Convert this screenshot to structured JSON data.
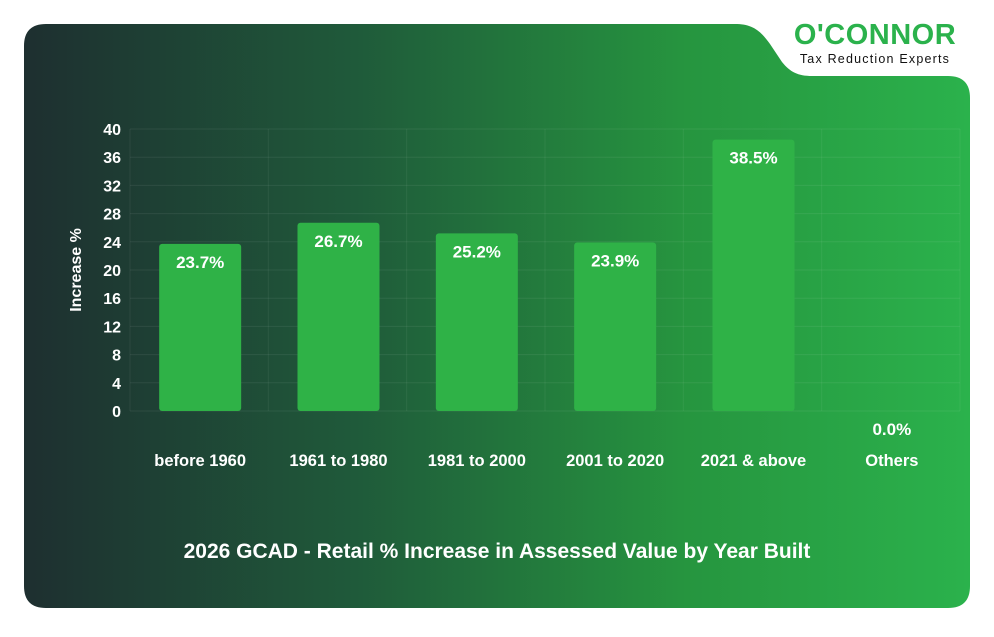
{
  "brand": {
    "name": "O'CONNOR",
    "tagline": "Tax Reduction Experts"
  },
  "colors": {
    "background_dark": "#1e2f2e",
    "background_light": "#2bb24c",
    "bar": "#2fb247",
    "text": "#ffffff"
  },
  "chart_data": {
    "type": "bar",
    "title": "2026 GCAD - Retail % Increase in Assessed Value by Year Built",
    "xlabel": "",
    "ylabel": "Increase %",
    "ylim": [
      0,
      40
    ],
    "yticks": [
      0,
      4,
      8,
      12,
      16,
      20,
      24,
      28,
      32,
      36,
      40
    ],
    "grid": true,
    "categories": [
      "before 1960",
      "1961 to 1980",
      "1981 to 2000",
      "2001 to 2020",
      "2021 & above",
      "Others"
    ],
    "values": [
      23.7,
      26.7,
      25.2,
      23.9,
      38.5,
      0.0
    ],
    "data_labels": [
      "23.7%",
      "26.7%",
      "25.2%",
      "23.9%",
      "38.5%",
      "0.0%"
    ]
  }
}
